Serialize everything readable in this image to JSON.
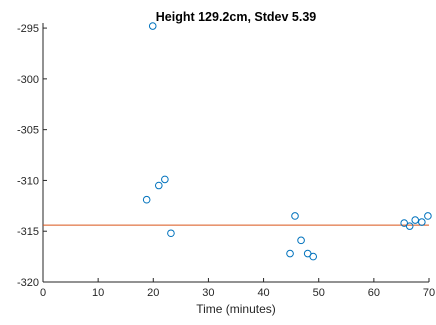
{
  "chart_data": {
    "type": "scatter",
    "title": "Height  129.2cm, Stdev 5.39",
    "xlabel": "Time (minutes)",
    "ylabel": "",
    "xlim": [
      0,
      70
    ],
    "ylim": [
      -320,
      -294.5
    ],
    "xticks": [
      0,
      10,
      20,
      30,
      40,
      50,
      60,
      70
    ],
    "yticks": [
      -320,
      -315,
      -310,
      -305,
      -300,
      -295
    ],
    "grid": false,
    "series": [
      {
        "marker": "open-circle",
        "color": "#0072BD",
        "points": [
          {
            "x": 18.8,
            "y": -311.9
          },
          {
            "x": 19.9,
            "y": -294.8
          },
          {
            "x": 21.0,
            "y": -310.5
          },
          {
            "x": 22.1,
            "y": -309.9
          },
          {
            "x": 23.2,
            "y": -315.2
          },
          {
            "x": 44.8,
            "y": -317.2
          },
          {
            "x": 45.7,
            "y": -313.5
          },
          {
            "x": 46.8,
            "y": -315.9
          },
          {
            "x": 48.0,
            "y": -317.2
          },
          {
            "x": 49.0,
            "y": -317.5
          },
          {
            "x": 65.5,
            "y": -314.2
          },
          {
            "x": 66.5,
            "y": -314.5
          },
          {
            "x": 67.5,
            "y": -313.9
          },
          {
            "x": 68.7,
            "y": -314.1
          },
          {
            "x": 69.8,
            "y": -313.5
          }
        ]
      }
    ],
    "reference_line": {
      "y": -314.4,
      "color": "#D95319"
    },
    "axis_color": "#262626"
  }
}
